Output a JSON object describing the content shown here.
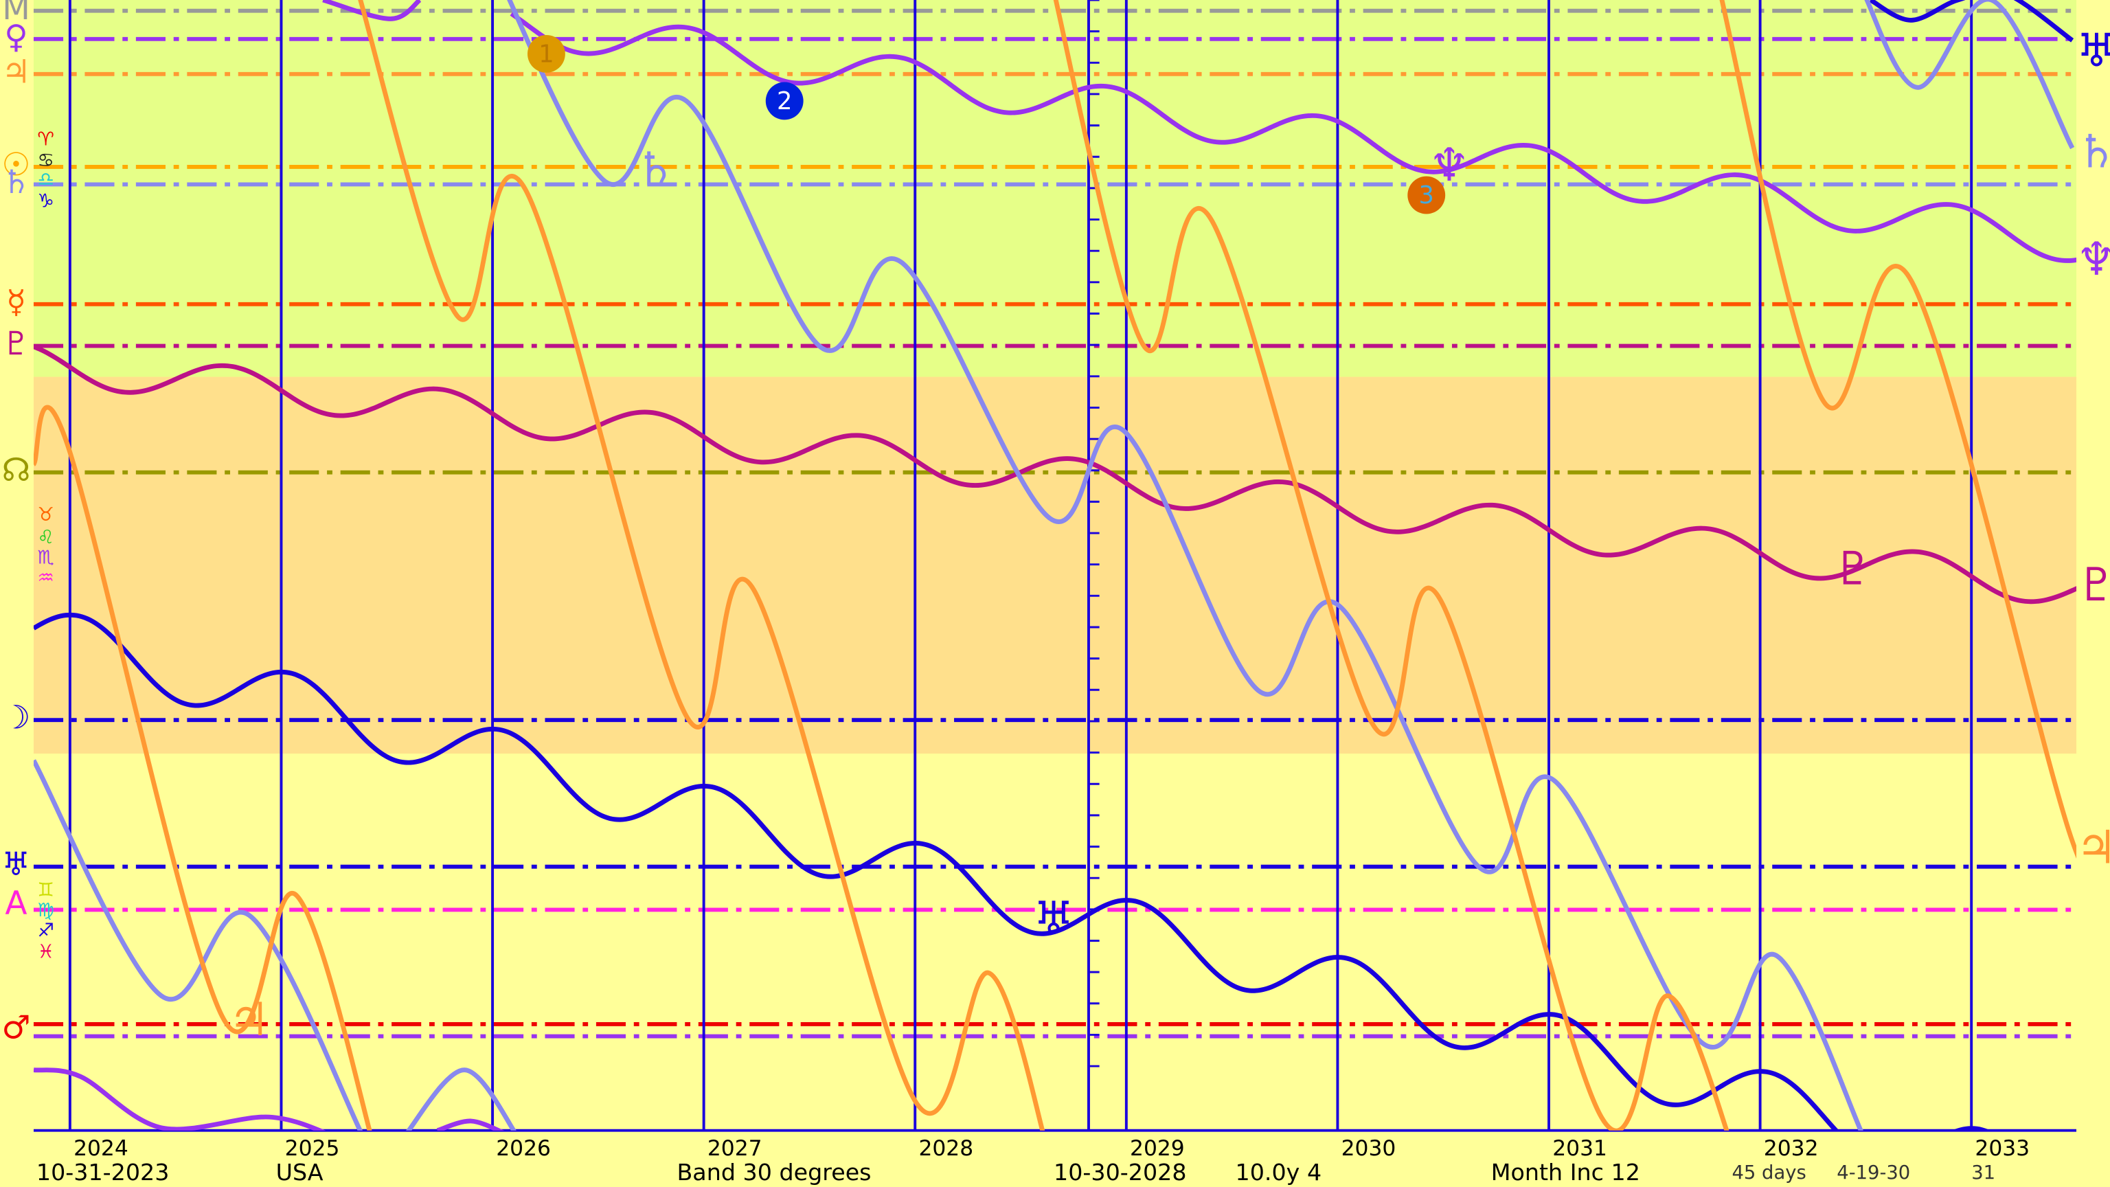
{
  "years": [
    "2024",
    "2025",
    "2026",
    "2027",
    "2028",
    "2029",
    "2030",
    "2031",
    "2032",
    "2033"
  ],
  "footer": {
    "start_date": "10-31-2023",
    "location": "USA",
    "band": "Band 30 degrees",
    "mid_date": "10-30-2028",
    "span": "10.0y  4",
    "increment": "Month Inc 12",
    "step": "45 days",
    "end_date": "4-19-30",
    "end_day": "31"
  },
  "left_labels": [
    "M",
    "♀",
    "♃",
    "☉",
    "♄",
    "☿",
    "♇",
    "☊",
    "☽",
    "♅",
    "A",
    "♂"
  ],
  "signs_top": [
    "♈",
    "♋",
    "♎",
    "♑"
  ],
  "signs_mid": [
    "♉",
    "♌",
    "♏",
    "♒"
  ],
  "signs_bottom": [
    "♊",
    "♍",
    "♐",
    "♓"
  ],
  "markers": [
    "1",
    "2",
    "3"
  ],
  "curve_labels": [
    "♃",
    "♄",
    "♆",
    "♇",
    "♅"
  ],
  "right_labels": [
    "♅",
    "♄",
    "♆",
    "♇",
    "♃"
  ]
}
